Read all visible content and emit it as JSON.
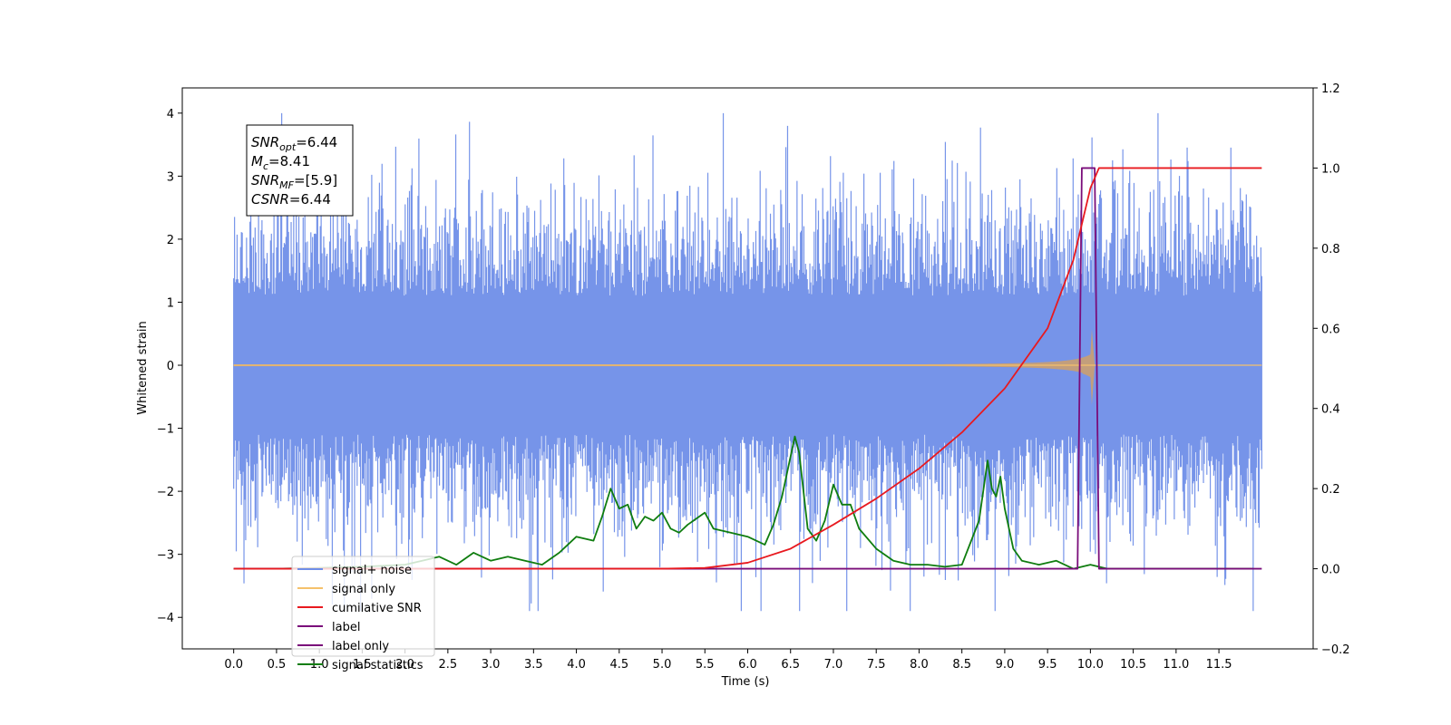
{
  "chart_data": {
    "type": "line",
    "xlabel": "Time (s)",
    "ylabel_left": "Whitened strain",
    "ylabel_right": "",
    "x_ticks": [
      "0.0",
      "0.5",
      "1.0",
      "1.5",
      "2.0",
      "2.5",
      "3.0",
      "3.5",
      "4.0",
      "4.5",
      "5.0",
      "5.5",
      "6.0",
      "6.5",
      "7.0",
      "7.5",
      "8.0",
      "8.5",
      "9.0",
      "9.5",
      "10.0",
      "10.5",
      "11.0",
      "11.5"
    ],
    "y_ticks_left": [
      "4",
      "3",
      "2",
      "1",
      "0",
      "−1",
      "−2",
      "−3",
      "−4"
    ],
    "y_ticks_right": [
      "1.2",
      "1.0",
      "0.8",
      "0.6",
      "0.4",
      "0.2",
      "0.0",
      "−0.2"
    ],
    "xlim": [
      -0.6,
      12.6
    ],
    "ylim_left": [
      -4.5,
      4.4
    ],
    "ylim_right": [
      -0.2,
      1.2
    ],
    "grid": false,
    "legend_position": "lower-left",
    "annotation": [
      {
        "var": "SNR",
        "sub": "opt",
        "value": "=6.44"
      },
      {
        "var": "M",
        "sub": "c",
        "value": "=8.41"
      },
      {
        "var": "SNR",
        "sub": "MF",
        "value": "=[5.9]"
      },
      {
        "var": "CSNR",
        "sub": "",
        "value": "=6.44"
      }
    ],
    "series": [
      {
        "name": "signal+ noise",
        "color": "#6f8ee8",
        "axis": "left",
        "description_values": {
          "x_range": [
            0,
            12
          ],
          "amplitude_range": [
            -3.9,
            4.0
          ]
        }
      },
      {
        "name": "signal only",
        "color": "#f5c16b",
        "axis": "left",
        "description_values": {
          "x_range": [
            0,
            12
          ],
          "peak_time": 10.0,
          "peak_amplitude": 0.85
        }
      },
      {
        "name": "cumilative SNR",
        "color": "#e8191f",
        "axis": "right",
        "x": [
          0,
          5.0,
          5.5,
          6.0,
          6.5,
          7.0,
          7.5,
          8.0,
          8.5,
          9.0,
          9.5,
          9.8,
          10.0,
          10.1,
          12.0
        ],
        "y": [
          0,
          0,
          0.002,
          0.015,
          0.05,
          0.11,
          0.175,
          0.25,
          0.34,
          0.45,
          0.6,
          0.77,
          0.95,
          1.0,
          1.0
        ]
      },
      {
        "name": "label",
        "color": "#7a0d7a",
        "axis": "right",
        "x": [
          0,
          9.85,
          9.9,
          10.0,
          10.05,
          10.1,
          10.15,
          12.0
        ],
        "y": [
          0,
          0,
          1.0,
          1.0,
          1.0,
          0,
          0,
          0
        ]
      },
      {
        "name": "label only",
        "color": "#7a0d7a",
        "axis": "right",
        "x": [],
        "y": []
      },
      {
        "name": "signal statistics",
        "color": "#0f7d0f",
        "axis": "right",
        "x": [
          0,
          0.5,
          1.0,
          1.5,
          2.0,
          2.2,
          2.4,
          2.6,
          2.8,
          3.0,
          3.2,
          3.4,
          3.6,
          3.8,
          3.9,
          4.0,
          4.2,
          4.3,
          4.4,
          4.5,
          4.6,
          4.7,
          4.8,
          4.9,
          5.0,
          5.1,
          5.2,
          5.3,
          5.5,
          5.6,
          5.8,
          6.0,
          6.2,
          6.3,
          6.4,
          6.5,
          6.55,
          6.6,
          6.7,
          6.8,
          6.9,
          7.0,
          7.1,
          7.2,
          7.3,
          7.5,
          7.7,
          7.9,
          8.1,
          8.3,
          8.5,
          8.7,
          8.8,
          8.85,
          8.9,
          8.95,
          9.0,
          9.1,
          9.2,
          9.4,
          9.6,
          9.8,
          10.0,
          10.2,
          10.5,
          11.0,
          11.5,
          11.9
        ],
        "y": [
          0,
          0,
          0.002,
          0.005,
          0.01,
          0.02,
          0.03,
          0.01,
          0.04,
          0.02,
          0.03,
          0.02,
          0.01,
          0.04,
          0.06,
          0.08,
          0.07,
          0.13,
          0.2,
          0.15,
          0.16,
          0.1,
          0.13,
          0.12,
          0.14,
          0.1,
          0.09,
          0.11,
          0.14,
          0.1,
          0.09,
          0.08,
          0.06,
          0.11,
          0.18,
          0.28,
          0.33,
          0.29,
          0.1,
          0.07,
          0.12,
          0.21,
          0.16,
          0.16,
          0.1,
          0.05,
          0.02,
          0.01,
          0.01,
          0.005,
          0.01,
          0.12,
          0.27,
          0.2,
          0.18,
          0.23,
          0.15,
          0.05,
          0.02,
          0.01,
          0.02,
          0.0,
          0.01,
          0.0,
          0.0,
          0.0,
          0.0,
          0.0
        ]
      }
    ]
  }
}
